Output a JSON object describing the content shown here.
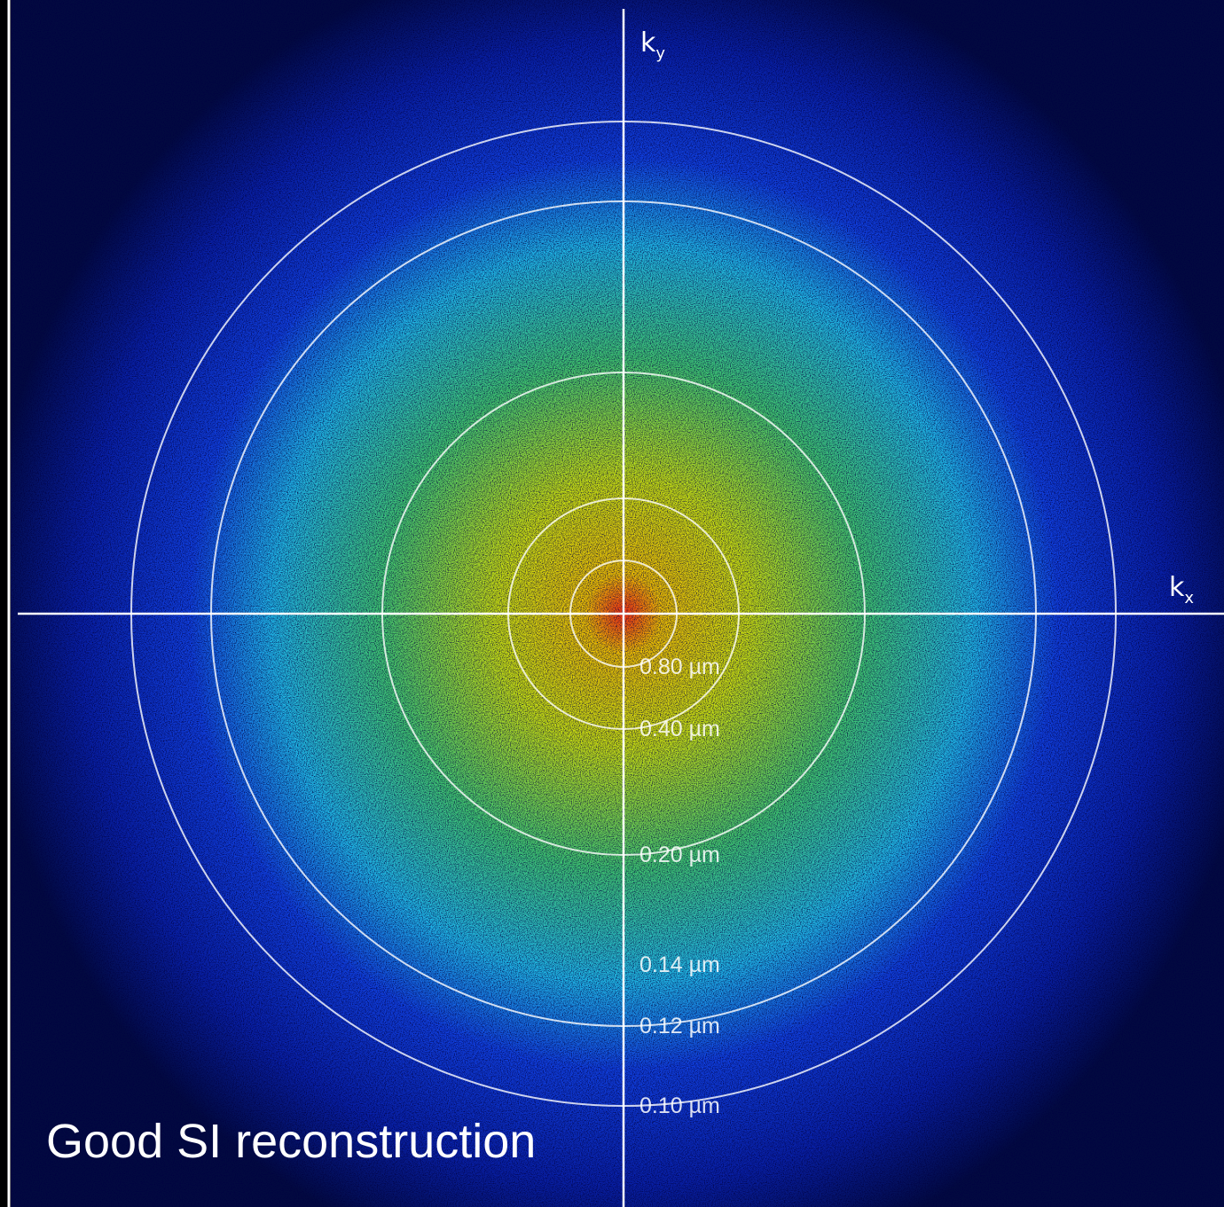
{
  "axes": {
    "ky": {
      "main": "k",
      "sub": "y"
    },
    "kx": {
      "main": "k",
      "sub": "x"
    }
  },
  "rings": [
    {
      "label": "0.80 µm"
    },
    {
      "label": "0.40 µm"
    },
    {
      "label": "0.20 µm"
    },
    {
      "label": "0.14 µm"
    },
    {
      "label": "0.12 µm"
    },
    {
      "label": "0.10 µm"
    }
  ],
  "caption": "Good SI reconstruction"
}
